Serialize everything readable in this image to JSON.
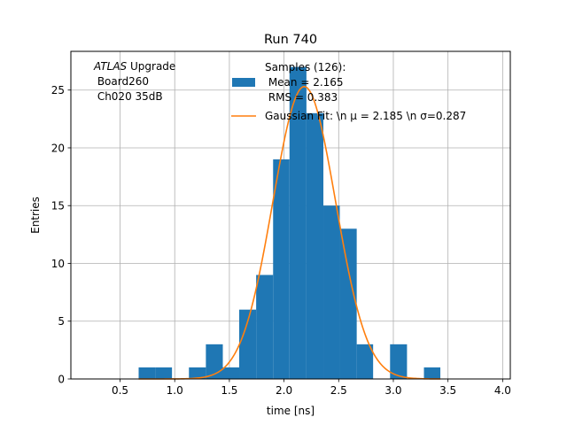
{
  "chart_data": {
    "type": "bar",
    "title": "Run 740",
    "xlabel": "time [ns]",
    "ylabel": "Entries",
    "xlim": [
      0.05,
      4.07
    ],
    "ylim": [
      0,
      28.35
    ],
    "xticks": [
      0.5,
      1.0,
      1.5,
      2.0,
      2.5,
      3.0,
      3.5,
      4.0
    ],
    "xtick_labels": [
      "0.5",
      "1.0",
      "1.5",
      "2.0",
      "2.5",
      "3.0",
      "3.5",
      "4.0"
    ],
    "yticks": [
      0,
      5,
      10,
      15,
      20,
      25
    ],
    "ytick_labels": [
      "0",
      "5",
      "10",
      "15",
      "20",
      "25"
    ],
    "grid": true,
    "legend_position": "top-right",
    "annotation": {
      "italic": "ATLAS",
      "line1_rest": " Upgrade",
      "line2": " Board260",
      "line3": " Ch020 35dB"
    },
    "histogram": {
      "name_lines": [
        "Samples (126):",
        " Mean = 2.165",
        " RMS = 0.383"
      ],
      "color": "#1f77b4",
      "bins": [
        {
          "x0": 0.67,
          "x1": 0.825,
          "count": 1
        },
        {
          "x0": 0.825,
          "x1": 0.975,
          "count": 1
        },
        {
          "x0": 1.13,
          "x1": 1.285,
          "count": 1
        },
        {
          "x0": 1.285,
          "x1": 1.44,
          "count": 3
        },
        {
          "x0": 1.44,
          "x1": 1.59,
          "count": 1
        },
        {
          "x0": 1.59,
          "x1": 1.745,
          "count": 6
        },
        {
          "x0": 1.745,
          "x1": 1.9,
          "count": 9
        },
        {
          "x0": 1.9,
          "x1": 2.05,
          "count": 19
        },
        {
          "x0": 2.05,
          "x1": 2.205,
          "count": 27
        },
        {
          "x0": 2.205,
          "x1": 2.36,
          "count": 23
        },
        {
          "x0": 2.36,
          "x1": 2.51,
          "count": 15
        },
        {
          "x0": 2.51,
          "x1": 2.665,
          "count": 13
        },
        {
          "x0": 2.665,
          "x1": 2.815,
          "count": 3
        },
        {
          "x0": 2.97,
          "x1": 3.125,
          "count": 3
        },
        {
          "x0": 3.28,
          "x1": 3.43,
          "count": 1
        }
      ]
    },
    "fit": {
      "name": "Gaussian Fit: \\n μ = 2.185 \\n σ=0.287",
      "color": "#ff7f0e",
      "mu": 2.185,
      "sigma": 0.287,
      "amplitude": 25.3,
      "x_range": [
        0.67,
        3.43
      ]
    }
  }
}
